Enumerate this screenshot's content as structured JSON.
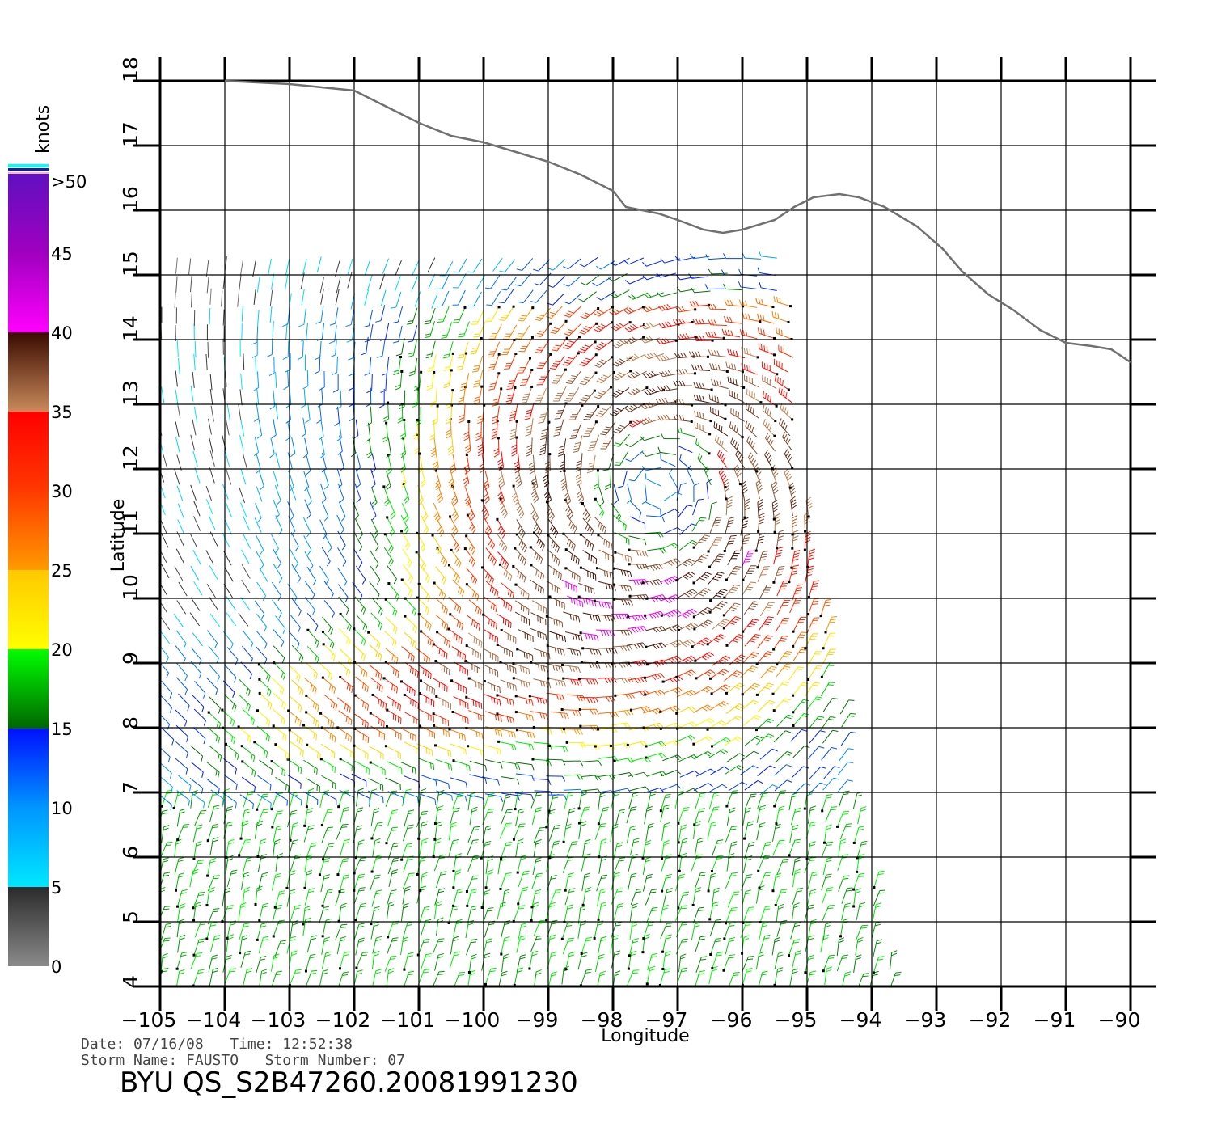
{
  "map": {
    "xlabel": "Longitude",
    "ylabel": "Latitude",
    "lon_ticks": [
      "−105",
      "−104",
      "−103",
      "−102",
      "−101",
      "−100",
      "−99",
      "−98",
      "−97",
      "−96",
      "−95",
      "−94",
      "−93",
      "−92",
      "−91",
      "−90"
    ],
    "lat_ticks": [
      "4",
      "5",
      "6",
      "7",
      "8",
      "9",
      "10",
      "11",
      "12",
      "13",
      "14",
      "15",
      "16",
      "17",
      "18"
    ],
    "lon_range": [
      -105,
      -90
    ],
    "lat_range": [
      4,
      18
    ],
    "grid": true,
    "coastline_color": "#707070",
    "coastline": [
      [
        -104.0,
        18.0
      ],
      [
        -103.0,
        17.95
      ],
      [
        -102.5,
        17.9
      ],
      [
        -102.0,
        17.85
      ],
      [
        -101.5,
        17.6
      ],
      [
        -101.0,
        17.35
      ],
      [
        -100.5,
        17.15
      ],
      [
        -100.0,
        17.05
      ],
      [
        -99.5,
        16.9
      ],
      [
        -99.0,
        16.75
      ],
      [
        -98.5,
        16.55
      ],
      [
        -98.0,
        16.3
      ],
      [
        -97.8,
        16.05
      ],
      [
        -97.3,
        15.95
      ],
      [
        -97.0,
        15.85
      ],
      [
        -96.6,
        15.7
      ],
      [
        -96.3,
        15.65
      ],
      [
        -96.0,
        15.7
      ],
      [
        -95.5,
        15.85
      ],
      [
        -95.2,
        16.05
      ],
      [
        -94.9,
        16.2
      ],
      [
        -94.5,
        16.25
      ],
      [
        -94.2,
        16.2
      ],
      [
        -93.8,
        16.05
      ],
      [
        -93.3,
        15.75
      ],
      [
        -92.9,
        15.4
      ],
      [
        -92.6,
        15.05
      ],
      [
        -92.2,
        14.7
      ],
      [
        -91.8,
        14.45
      ],
      [
        -91.4,
        14.15
      ],
      [
        -91.0,
        13.95
      ],
      [
        -90.6,
        13.9
      ],
      [
        -90.3,
        13.85
      ],
      [
        -90.0,
        13.65
      ]
    ]
  },
  "colorbar": {
    "title": "knots",
    "labels": [
      ">50",
      "45",
      "40",
      "35",
      "30",
      "25",
      "20",
      "15",
      "10",
      "5",
      "0"
    ],
    "label_values": [
      50,
      45,
      40,
      35,
      30,
      25,
      20,
      15,
      10,
      5,
      0
    ],
    "stops": [
      {
        "v": 0,
        "c": "#8a8a8a"
      },
      {
        "v": 5,
        "c": "#2b2b2b"
      },
      {
        "v": 5,
        "c": "#00e8ff"
      },
      {
        "v": 10,
        "c": "#0096ff"
      },
      {
        "v": 15,
        "c": "#0010ff"
      },
      {
        "v": 15,
        "c": "#006600"
      },
      {
        "v": 20,
        "c": "#00ff00"
      },
      {
        "v": 20,
        "c": "#ffff00"
      },
      {
        "v": 25,
        "c": "#ffc800"
      },
      {
        "v": 25,
        "c": "#ff9a00"
      },
      {
        "v": 30,
        "c": "#ff3a00"
      },
      {
        "v": 30,
        "c": "#ff3800"
      },
      {
        "v": 35,
        "c": "#ff0000"
      },
      {
        "v": 35,
        "c": "#c98a5a"
      },
      {
        "v": 40,
        "c": "#3a0a00"
      },
      {
        "v": 40,
        "c": "#ff00ff"
      },
      {
        "v": 45,
        "c": "#a000c0"
      },
      {
        "v": 50,
        "c": "#6010c0"
      }
    ],
    "top_bands": [
      "#ffb0c0",
      "#202080",
      "#00ffff"
    ]
  },
  "wind_field": {
    "center_lon": -97.3,
    "center_lat": 11.7,
    "swath_east_edge": [
      [
        -95.3,
        15.4
      ],
      [
        -95.1,
        12.0
      ],
      [
        -94.6,
        9.0
      ],
      [
        -94.0,
        5.5
      ],
      [
        -93.7,
        4.0
      ]
    ]
  },
  "meta": {
    "date_line": "Date: 07/16/08   Time: 12:52:38",
    "storm_line": "Storm Name: FAUSTO   Storm Number: 07",
    "file_name": "BYU QS_S2B47260.20081991230"
  }
}
